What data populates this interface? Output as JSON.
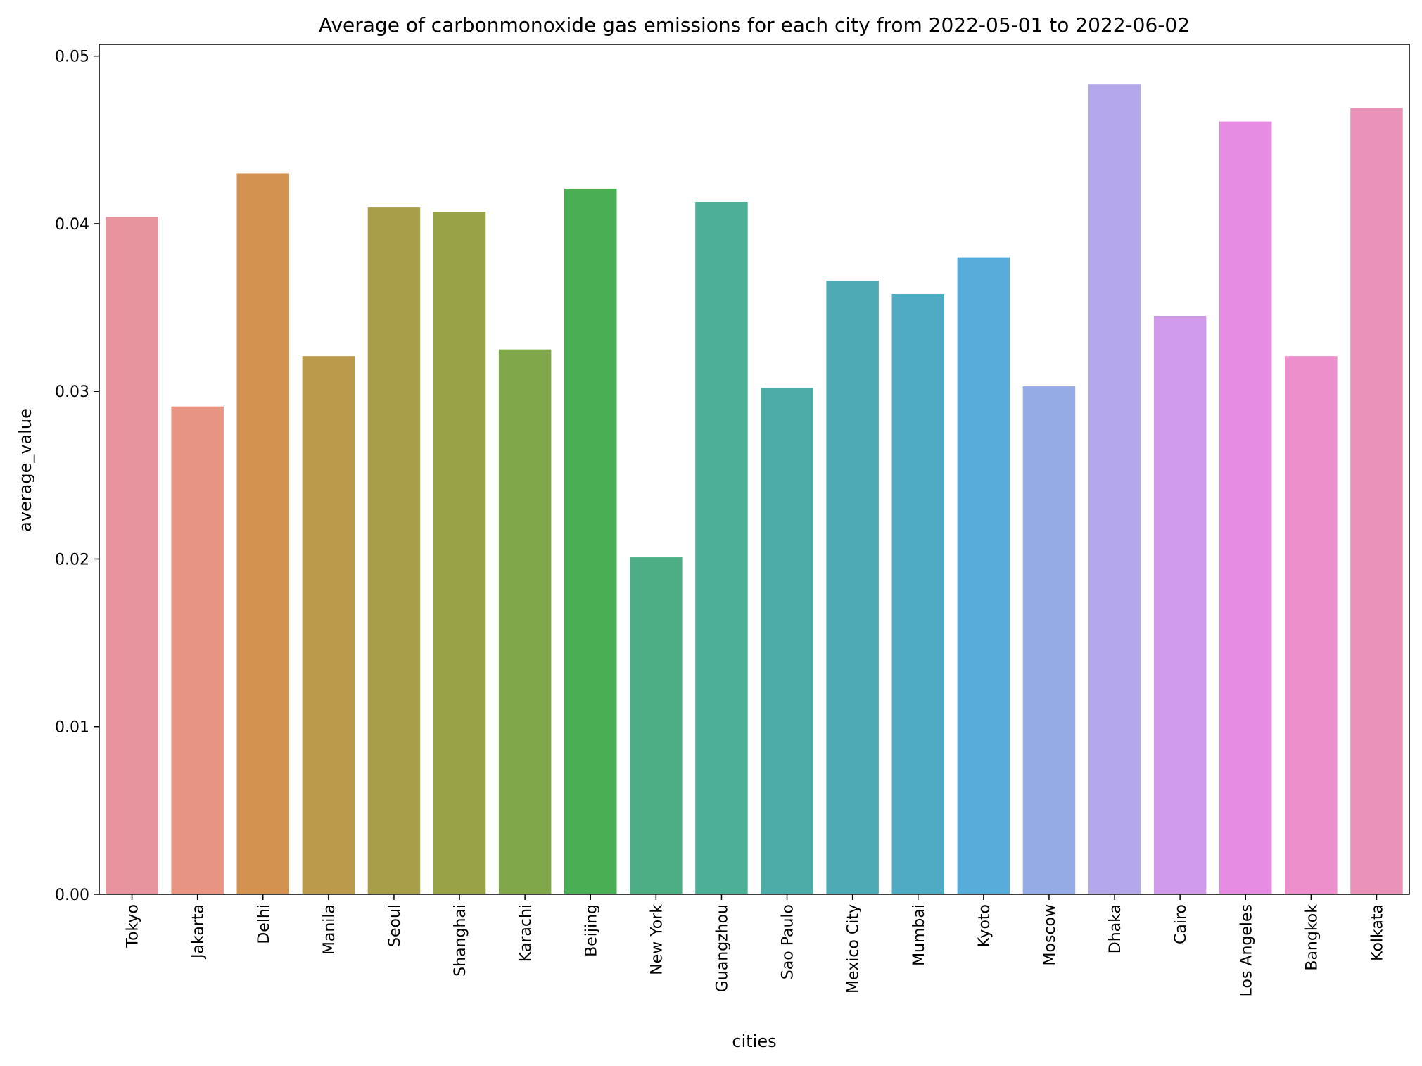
{
  "chart_data": {
    "type": "bar",
    "title": "Average of carbonmonoxide gas emissions for each city from 2022-05-01 to 2022-06-02",
    "xlabel": "cities",
    "ylabel": "average_value",
    "ylim": [
      0,
      0.0507
    ],
    "yticks": [
      "0.00",
      "0.01",
      "0.02",
      "0.03",
      "0.04",
      "0.05"
    ],
    "grid": false,
    "categories": [
      "Tokyo",
      "Jakarta",
      "Delhi",
      "Manila",
      "Seoul",
      "Shanghai",
      "Karachi",
      "Beijing",
      "New York",
      "Guangzhou",
      "Sao Paulo",
      "Mexico City",
      "Mumbai",
      "Kyoto",
      "Moscow",
      "Dhaka",
      "Cairo",
      "Los Angeles",
      "Bangkok",
      "Kolkata"
    ],
    "values": [
      0.0404,
      0.0291,
      0.043,
      0.0321,
      0.041,
      0.0407,
      0.0325,
      0.0421,
      0.0201,
      0.0413,
      0.0302,
      0.0366,
      0.0358,
      0.038,
      0.0303,
      0.0483,
      0.0345,
      0.0461,
      0.0321,
      0.0469
    ],
    "colors": [
      "#e8949f",
      "#e79482",
      "#d49250",
      "#bb9a4b",
      "#a89d48",
      "#9aa248",
      "#80a84a",
      "#4aae54",
      "#4cae82",
      "#4caf96",
      "#4daba8",
      "#4eaab5",
      "#4fabc3",
      "#58acd9",
      "#95abe6",
      "#b4a7ea",
      "#cf9bea",
      "#e68ce2",
      "#ec8fcb",
      "#e993b8"
    ]
  }
}
